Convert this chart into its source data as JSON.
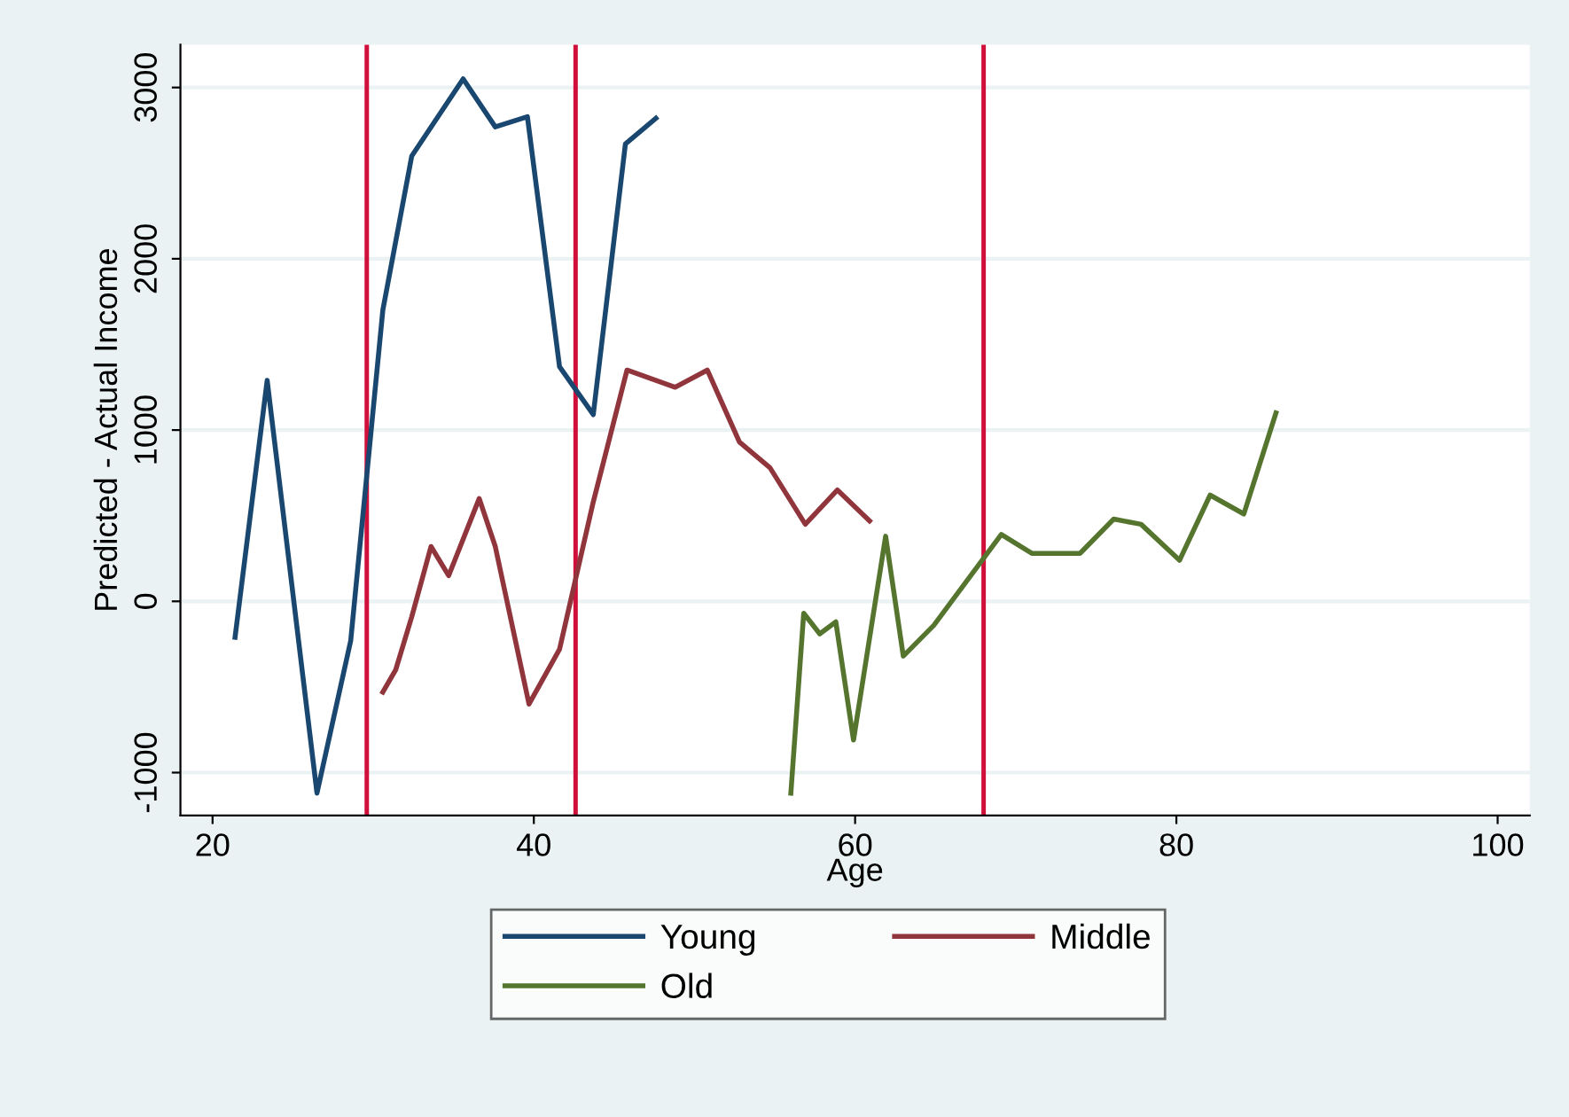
{
  "chart_data": {
    "type": "line",
    "xlabel": "Age",
    "ylabel": "Predicted - Actual Income",
    "xlim": [
      18,
      102
    ],
    "xticks": [
      20,
      40,
      60,
      80,
      100
    ],
    "ylim": [
      -1250,
      3250
    ],
    "yticks": [
      -1000,
      0,
      1000,
      2000,
      3000
    ],
    "grid": "y",
    "legend": "bottom",
    "marker": "none",
    "line_style": "solid",
    "series": [
      {
        "name": "Young",
        "color": "#1a476f",
        "x": [
          21.4,
          23.4,
          26.5,
          28.6,
          30.6,
          32.4,
          35.6,
          37.6,
          39.6,
          41.6,
          43.7,
          45.7,
          47.6
        ],
        "values": [
          -210,
          1290,
          -1120,
          -230,
          1700,
          2600,
          3050,
          2770,
          2830,
          1370,
          1090,
          2670,
          2820
        ]
      },
      {
        "name": "Middle",
        "color": "#90353b",
        "x": [
          30.6,
          31.4,
          32.4,
          33.6,
          34.7,
          36.6,
          37.6,
          39.7,
          41.6,
          43.7,
          45.8,
          48.8,
          50.8,
          52.8,
          54.7,
          56.9,
          58.9,
          60.9
        ],
        "values": [
          -530,
          -400,
          -90,
          320,
          150,
          600,
          320,
          -600,
          -280,
          580,
          1350,
          1250,
          1350,
          930,
          780,
          450,
          650,
          470
        ]
      },
      {
        "name": "Old",
        "color": "#55752f",
        "x": [
          56.0,
          56.8,
          57.8,
          58.8,
          59.9,
          61.9,
          63.0,
          64.9,
          69.1,
          71.0,
          74.0,
          76.1,
          77.8,
          80.2,
          82.1,
          84.2,
          86.2
        ],
        "values": [
          -1120,
          -70,
          -190,
          -120,
          -810,
          380,
          -320,
          -140,
          390,
          280,
          280,
          480,
          450,
          240,
          620,
          510,
          1100
        ]
      }
    ],
    "ref_lines": [
      {
        "axis": "x",
        "value": 29.6,
        "color": "#d0103a"
      },
      {
        "axis": "x",
        "value": 42.6,
        "color": "#d0103a"
      },
      {
        "axis": "x",
        "value": 68.0,
        "color": "#d0103a"
      }
    ]
  }
}
